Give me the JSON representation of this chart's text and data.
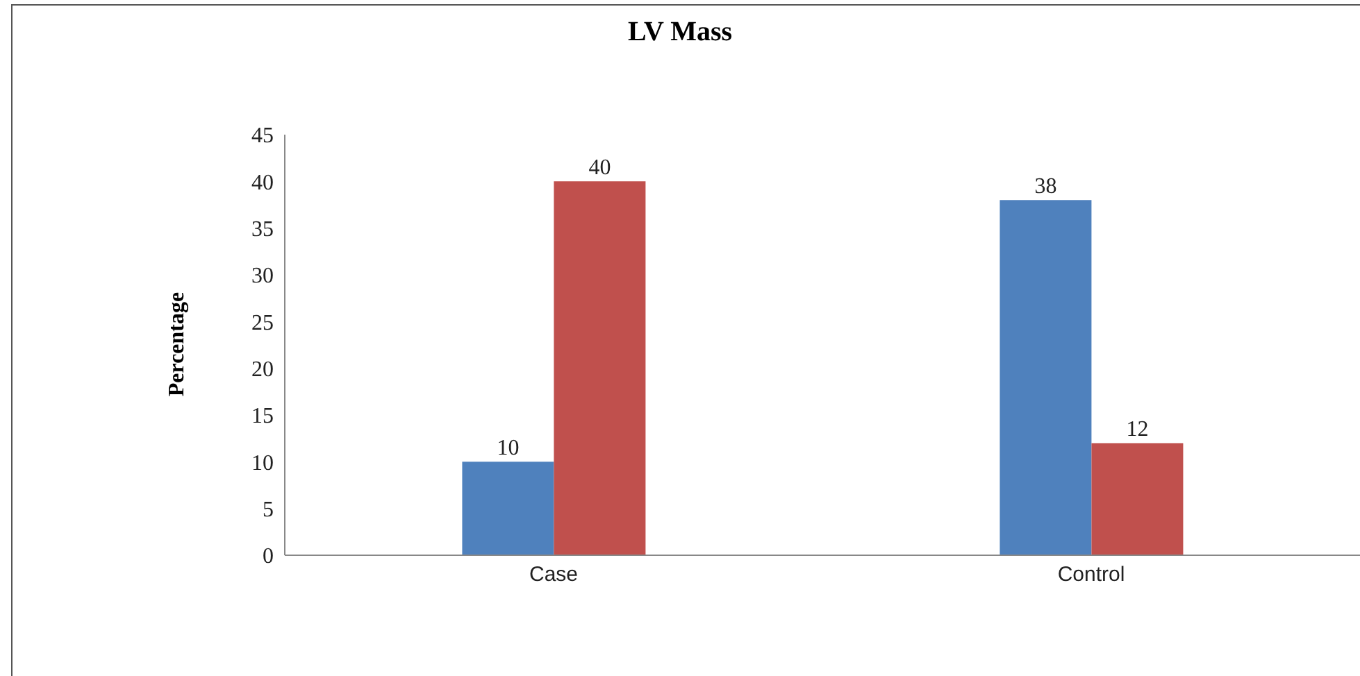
{
  "chart_data": {
    "type": "bar",
    "title": "LV Mass",
    "ylabel": "Percentage",
    "categories": [
      "Case",
      "Control"
    ],
    "series": [
      {
        "color": "#4f81bd",
        "values": [
          10,
          38
        ]
      },
      {
        "color": "#c0504d",
        "values": [
          40,
          12
        ]
      }
    ],
    "ylim": [
      0,
      45
    ],
    "yticks": [
      0,
      5,
      10,
      15,
      20,
      25,
      30,
      35,
      40,
      45
    ],
    "grid": false,
    "legend": false,
    "data_labels": true
  }
}
